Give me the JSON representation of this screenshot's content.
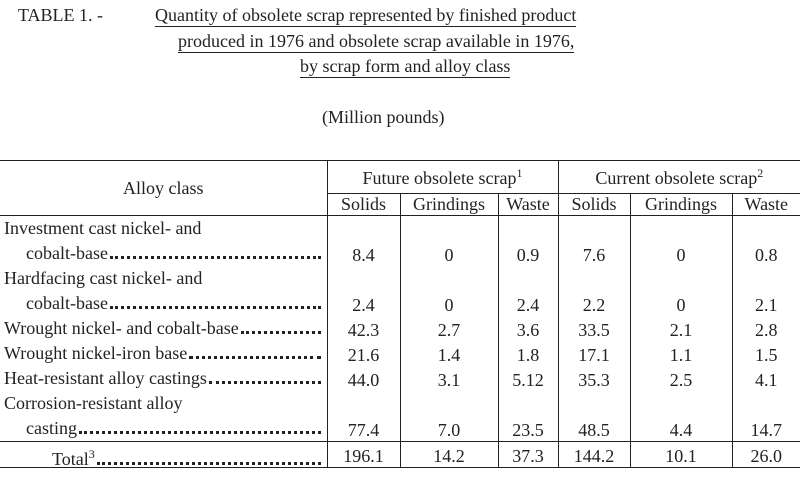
{
  "header": {
    "label": "TABLE 1. -",
    "title": [
      "Quantity of obsolete scrap represented by finished product",
      "produced in 1976 and obsolete scrap available in 1976,",
      "by scrap form and alloy class"
    ],
    "unit": "(Million pounds)"
  },
  "table": {
    "alloy_header": "Alloy class",
    "groups": [
      {
        "name": "Future obsolete scrap",
        "footnote": "1",
        "subcolumns": [
          "Solids",
          "Grindings",
          "Waste"
        ]
      },
      {
        "name": "Current obsolete scrap",
        "footnote": "2",
        "subcolumns": [
          "Solids",
          "Grindings",
          "Waste"
        ]
      }
    ],
    "rows": [
      {
        "label": [
          "Investment cast nickel- and",
          "cobalt-base"
        ],
        "values": [
          "8.4",
          "0",
          "0.9",
          "7.6",
          "0",
          "0.8"
        ]
      },
      {
        "label": [
          "Hardfacing cast nickel- and",
          "cobalt-base"
        ],
        "values": [
          "2.4",
          "0",
          "2.4",
          "2.2",
          "0",
          "2.1"
        ]
      },
      {
        "label": [
          "Wrought nickel- and cobalt-base"
        ],
        "values": [
          "42.3",
          "2.7",
          "3.6",
          "33.5",
          "2.1",
          "2.8"
        ]
      },
      {
        "label": [
          "Wrought nickel-iron base"
        ],
        "values": [
          "21.6",
          "1.4",
          "1.8",
          "17.1",
          "1.1",
          "1.5"
        ]
      },
      {
        "label": [
          "Heat-resistant alloy castings"
        ],
        "values": [
          "44.0",
          "3.1",
          "5.12",
          "35.3",
          "2.5",
          "4.1"
        ]
      },
      {
        "label": [
          "Corrosion-resistant alloy",
          "casting"
        ],
        "values": [
          "77.4",
          "7.0",
          "23.5",
          "48.5",
          "4.4",
          "14.7"
        ]
      }
    ],
    "total": {
      "label": "Total",
      "footnote": "3",
      "values": [
        "196.1",
        "14.2",
        "37.3",
        "144.2",
        "10.1",
        "26.0"
      ]
    }
  }
}
